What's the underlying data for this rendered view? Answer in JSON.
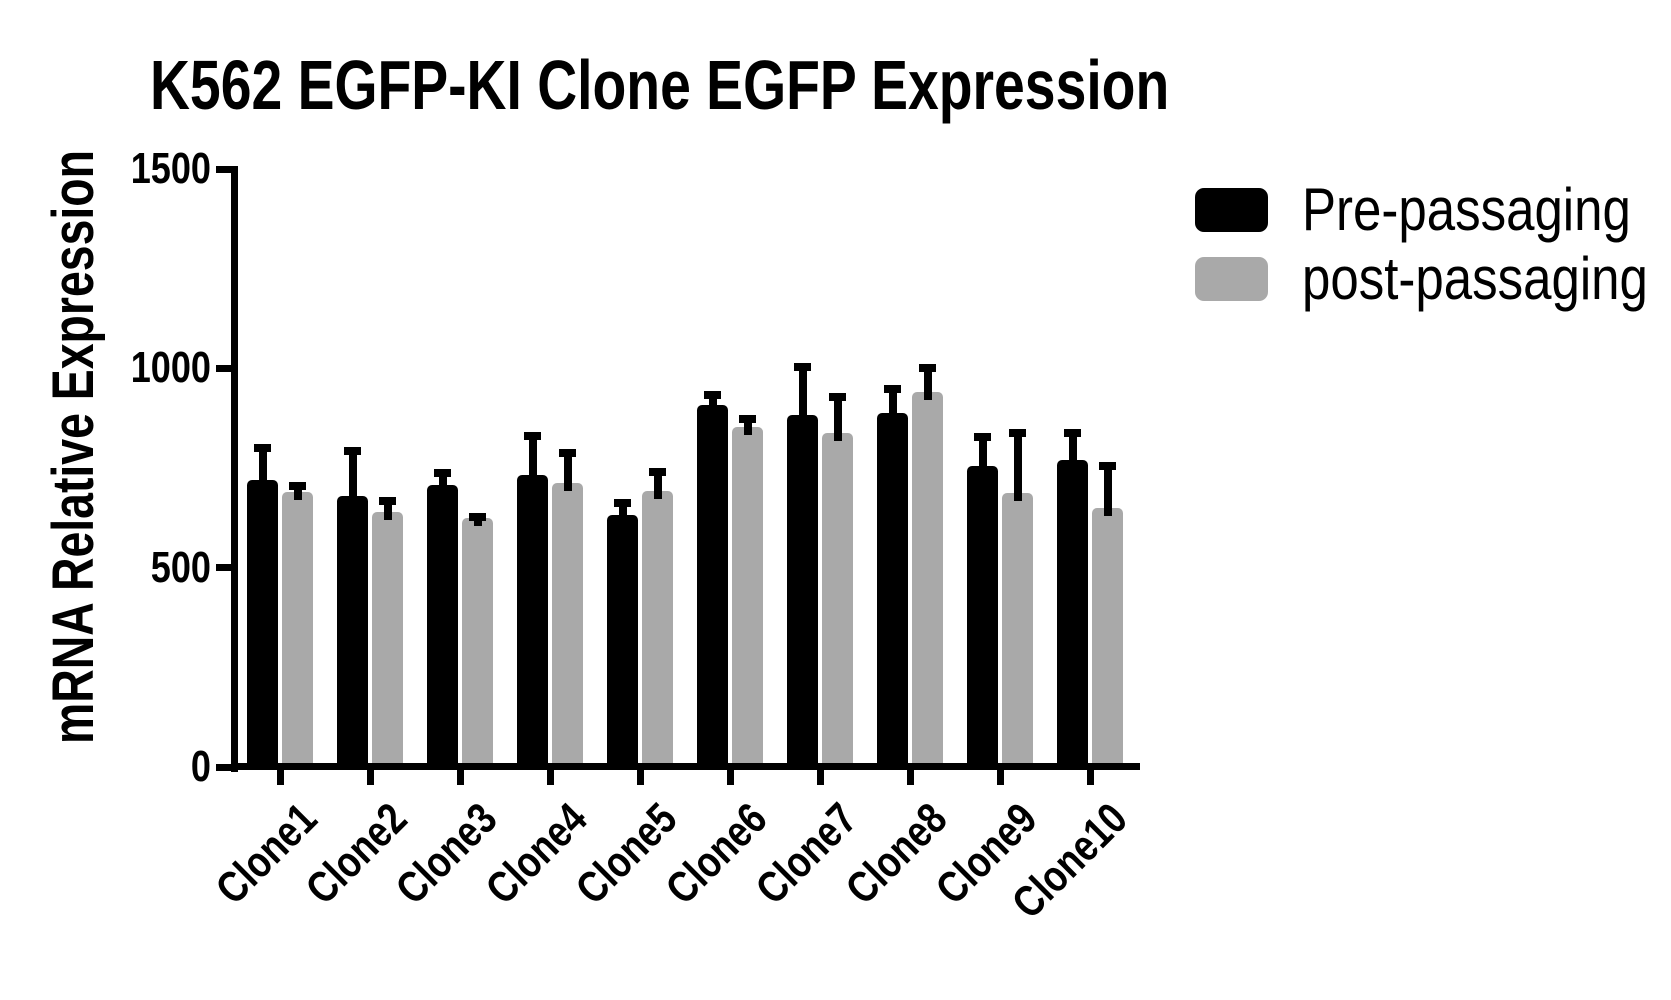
{
  "chart_data": {
    "type": "bar",
    "title": "K562 EGFP-KI Clone EGFP Expression",
    "ylabel": "mRNA Relative Expression",
    "xlabel": "",
    "categories": [
      "Clone1",
      "Clone2",
      "Clone3",
      "Clone4",
      "Clone5",
      "Clone6",
      "Clone7",
      "Clone8",
      "Clone9",
      "Clone10"
    ],
    "series": [
      {
        "name": "Pre-passaging",
        "color": "#000000",
        "values": [
          720,
          681,
          707,
          733,
          633,
          908,
          884,
          887,
          755,
          770
        ],
        "errors_up": [
          90,
          122,
          40,
          108,
          40,
          36,
          129,
          71,
          82,
          79
        ]
      },
      {
        "name": "post-passaging",
        "color": "#a9a9a9",
        "values": [
          690,
          639,
          624,
          712,
          693,
          853,
          837,
          941,
          687,
          649
        ],
        "errors_up": [
          26,
          39,
          14,
          85,
          58,
          30,
          101,
          71,
          162,
          117
        ]
      }
    ],
    "ylim": [
      0,
      1500
    ],
    "yticks": [
      0,
      500,
      1000,
      1500
    ],
    "grid": false,
    "error_bars": "upper-only",
    "error_bar_color": "#000000",
    "legend_position": "top-right",
    "background_color": "#ffffff",
    "axis_color": "#000000"
  }
}
